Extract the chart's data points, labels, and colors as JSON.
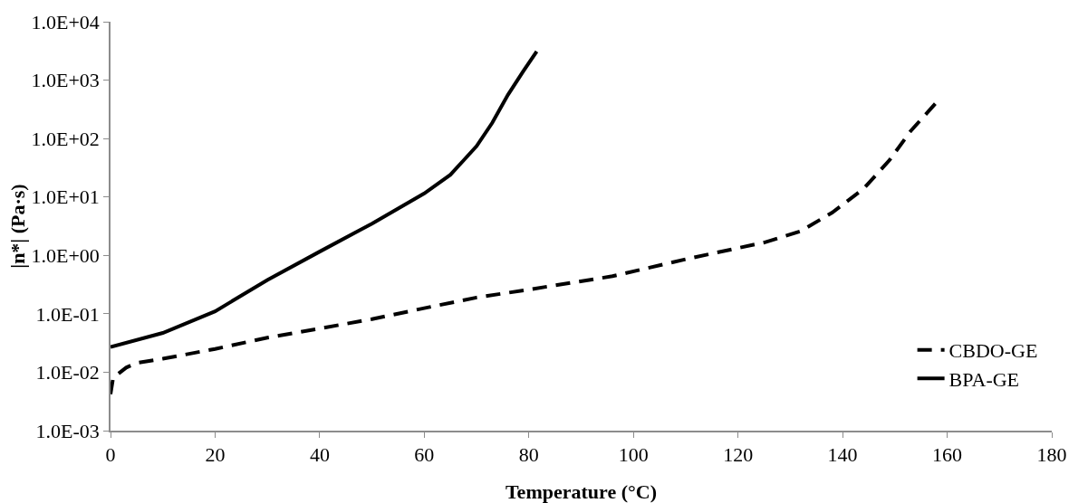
{
  "chart_data": {
    "type": "line",
    "xlabel": "Temperature (°C)",
    "ylabel": "|n*| (Pa·s)",
    "log": "y",
    "grid": false,
    "legend": "bottom right",
    "marker": "none",
    "xlim": [
      0,
      180
    ],
    "xticks": [
      0,
      20,
      40,
      60,
      80,
      100,
      120,
      140,
      160,
      180
    ],
    "ylim": [
      0.001,
      10000
    ],
    "yticks": [
      {
        "value": 0.001,
        "label": "1.0E-03"
      },
      {
        "value": 0.01,
        "label": "1.0E-02"
      },
      {
        "value": 0.1,
        "label": "1.0E-01"
      },
      {
        "value": 1,
        "label": "1.0E+00"
      },
      {
        "value": 10,
        "label": "1.0E+01"
      },
      {
        "value": 100,
        "label": "1.0E+02"
      },
      {
        "value": 1000,
        "label": "1.0E+03"
      },
      {
        "value": 10000,
        "label": "1.0E+04"
      }
    ],
    "series": [
      {
        "name": "CBDO-GE",
        "color": "#000000",
        "line_style": "dashed",
        "x": [
          0,
          0.5,
          1,
          3,
          5,
          10,
          20,
          30,
          40,
          50,
          60,
          70,
          80,
          96,
          111,
          125,
          132,
          138,
          144,
          149,
          153,
          158
        ],
        "values": [
          0.0042,
          0.008,
          0.0087,
          0.012,
          0.0144,
          0.017,
          0.025,
          0.039,
          0.056,
          0.081,
          0.125,
          0.19,
          0.26,
          0.44,
          0.9,
          1.66,
          2.6,
          5.4,
          13.8,
          43,
          134,
          420
        ]
      },
      {
        "name": "BPA-GE",
        "color": "#000000",
        "line_style": "solid",
        "x": [
          0,
          10,
          20,
          30,
          40,
          50,
          60,
          65,
          70,
          73,
          76,
          79,
          81.5
        ],
        "values": [
          0.027,
          0.047,
          0.11,
          0.38,
          1.16,
          3.5,
          11.5,
          24,
          74,
          186,
          560,
          1450,
          3100
        ]
      }
    ]
  }
}
